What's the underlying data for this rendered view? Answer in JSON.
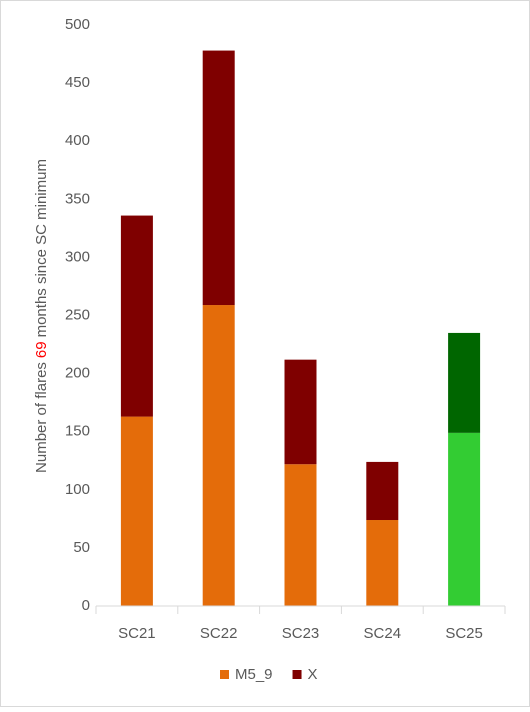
{
  "chart_data": {
    "type": "stacked_bar",
    "ylabel_parts": [
      {
        "text": "Number of flares"
      },
      {
        "text": "69",
        "color": "#ff0000"
      },
      {
        "text": "months since SC minimum"
      }
    ],
    "categories": [
      "SC21",
      "SC22",
      "SC23",
      "SC24",
      "SC25"
    ],
    "series": [
      {
        "name": "M5_9",
        "color": "#e46c0a",
        "colors": [
          "#e46c0a",
          "#e46c0a",
          "#e46c0a",
          "#e46c0a",
          "#33cc33"
        ],
        "values": [
          163,
          259,
          122,
          74,
          149
        ]
      },
      {
        "name": "X",
        "color": "#7f0000",
        "colors": [
          "#7f0000",
          "#7f0000",
          "#7f0000",
          "#7f0000",
          "#006600"
        ],
        "values": [
          173,
          219,
          90,
          50,
          86
        ]
      }
    ],
    "ylim": [
      0,
      500
    ],
    "yticks": [
      0,
      50,
      100,
      150,
      200,
      250,
      300,
      350,
      400,
      450,
      500
    ],
    "grid": false,
    "legend": "bottom"
  }
}
